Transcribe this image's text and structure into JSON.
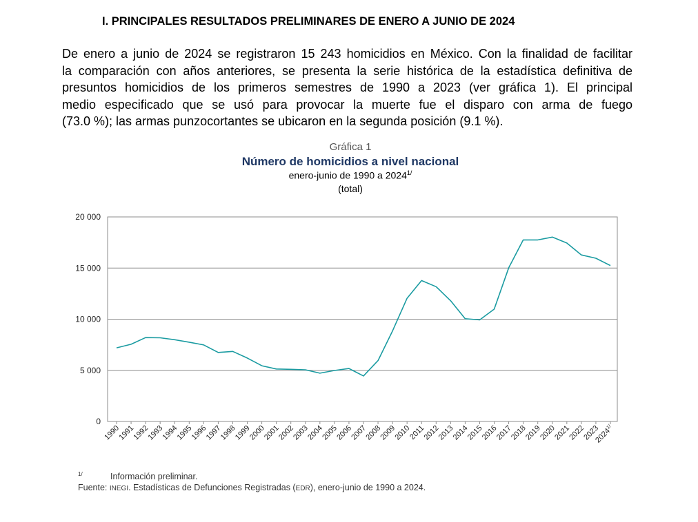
{
  "heading": "I. PRINCIPALES RESULTADOS PRELIMINARES DE ENERO A JUNIO DE 2024",
  "paragraph_lines": [
    "De enero a junio de 2024 se registraron 15 243 homicidios en México. Con la finalidad de facilitar",
    "la comparación con años anteriores, se presenta la serie histórica de la estadística definitiva de",
    "presuntos homicidios de los primeros semestres de 1990 a 2023 (ver gráfica 1). El principal",
    "medio especificado que se usó para provocar la muerte fue el disparo con arma de fuego",
    "(73.0 %); las armas punzocortantes se ubicaron en la segunda posición (9.1 %)."
  ],
  "chart_data": {
    "type": "line",
    "figure_number": "Gráfica 1",
    "title": "Número de homicidios a nivel nacional",
    "subtitle": "enero-junio de 1990 a 2024",
    "subtitle_note": "1/",
    "unit": "(total)",
    "color": "#1a9ba1",
    "ylim": [
      0,
      20000
    ],
    "yticks": [
      0,
      5000,
      10000,
      15000,
      20000
    ],
    "ytick_labels": [
      "0",
      "5 000",
      "10 000",
      "15 000",
      "20 000"
    ],
    "grid": true,
    "categories": [
      "1990",
      "1991",
      "1992",
      "1993",
      "1994",
      "1995",
      "1996",
      "1997",
      "1998",
      "1999",
      "2000",
      "2001",
      "2002",
      "2003",
      "2004",
      "2005",
      "2006",
      "2007",
      "2008",
      "2009",
      "2010",
      "2011",
      "2012",
      "2013",
      "2014",
      "2015",
      "2016",
      "2017",
      "2018",
      "2019",
      "2020",
      "2021",
      "2022",
      "2023",
      "2024"
    ],
    "last_category_note": "1/",
    "values": [
      7200,
      7550,
      8200,
      8180,
      7990,
      7750,
      7480,
      6750,
      6850,
      6200,
      5450,
      5130,
      5100,
      5050,
      4720,
      4980,
      5180,
      4450,
      5950,
      8850,
      12050,
      13780,
      13180,
      11800,
      10050,
      9930,
      10980,
      15030,
      17750,
      17750,
      18030,
      17450,
      16280,
      15960,
      15243
    ]
  },
  "footnote": {
    "mark": "1/",
    "text": "Información preliminar.",
    "source_label": "Fuente:",
    "source_org": "INEGI",
    "source_text": ". Estadísticas de Defunciones Registradas (",
    "source_abbr": "EDR",
    "source_tail": "), enero-junio de 1990 a 2024."
  }
}
